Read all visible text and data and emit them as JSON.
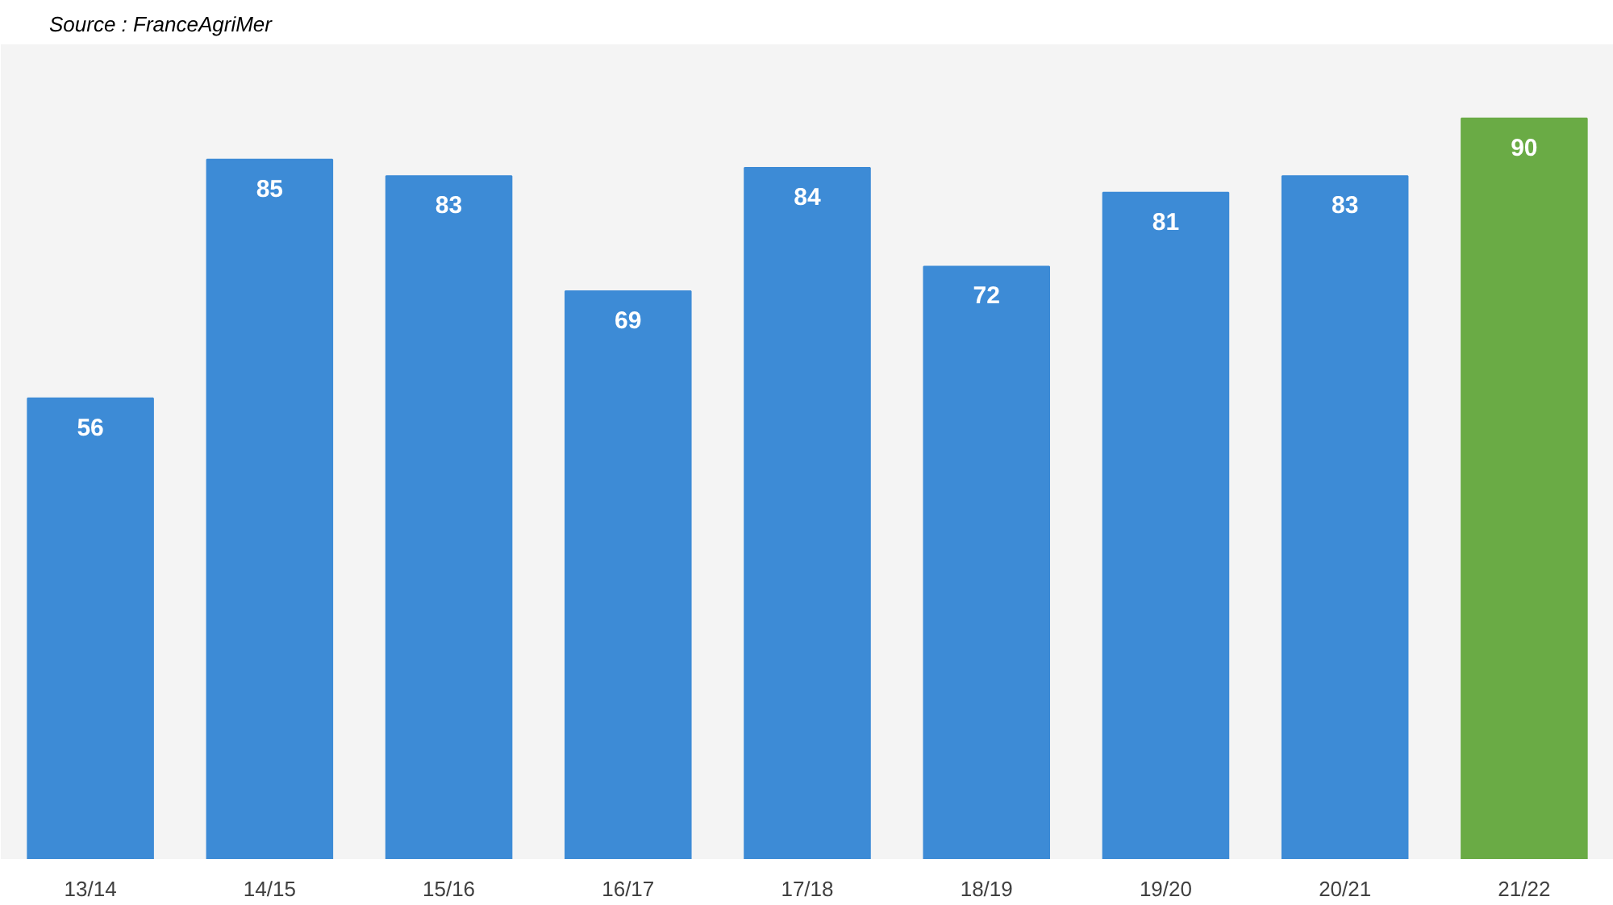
{
  "chart_data": {
    "type": "bar",
    "categories": [
      "13/14",
      "14/15",
      "15/16",
      "16/17",
      "17/18",
      "18/19",
      "19/20",
      "20/21",
      "21/22"
    ],
    "values": [
      56,
      85,
      83,
      69,
      84,
      72,
      81,
      83,
      90
    ],
    "colors": [
      "#3d8bd6",
      "#3d8bd6",
      "#3d8bd6",
      "#3d8bd6",
      "#3d8bd6",
      "#3d8bd6",
      "#3d8bd6",
      "#3d8bd6",
      "#6aab45"
    ],
    "data_labels": true,
    "grid": false,
    "annotations": [
      "Source : FranceAgriMer"
    ]
  }
}
